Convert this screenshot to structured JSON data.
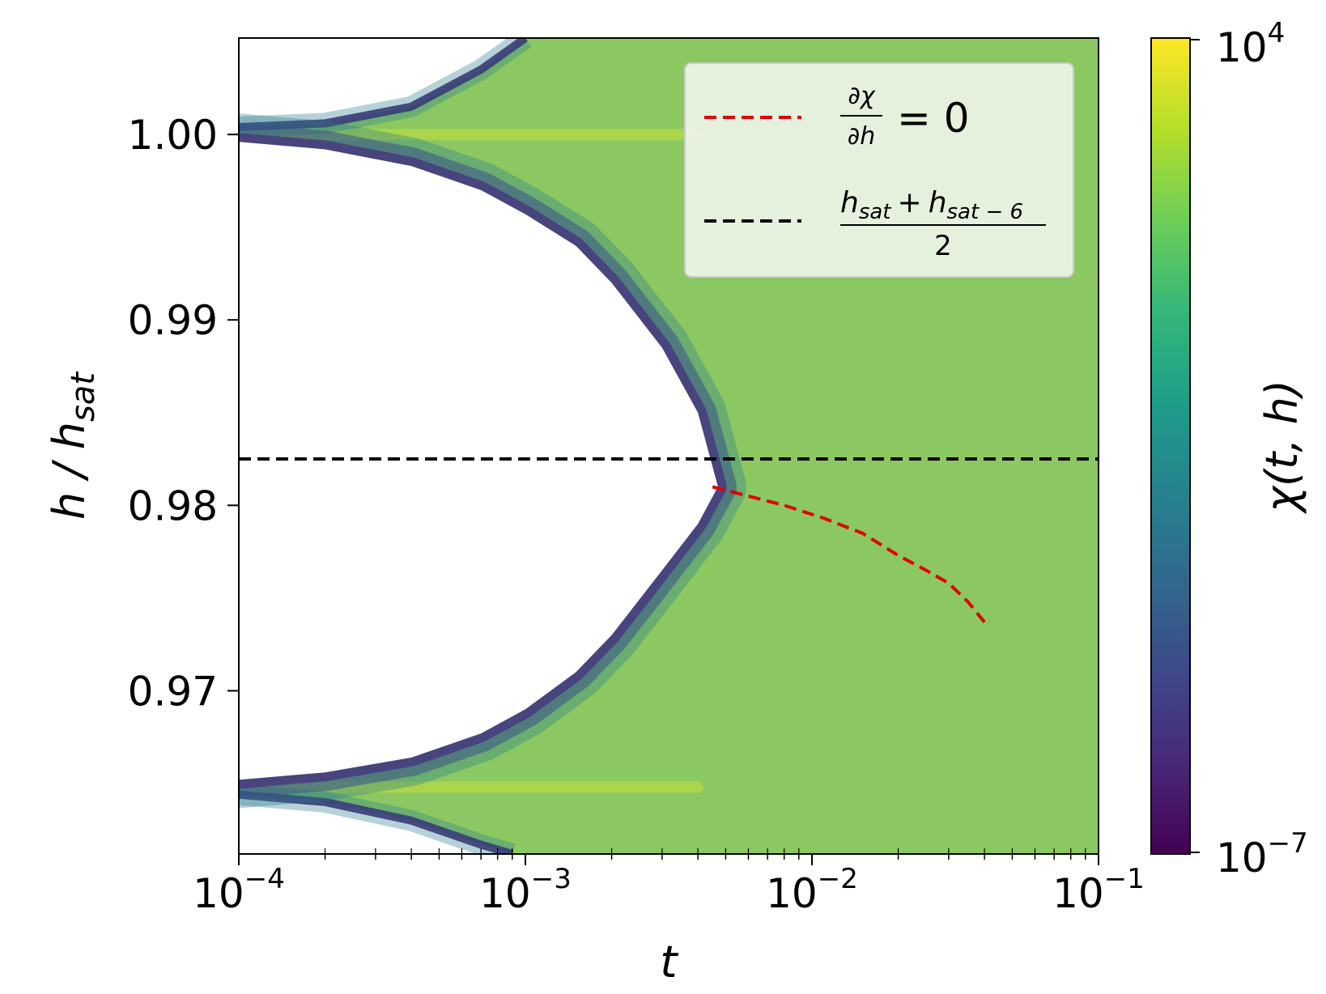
{
  "chart_data": {
    "type": "heatmap",
    "subtype": "filled-contour",
    "xlabel": "t",
    "xscale": "log",
    "xlim": [
      0.0001,
      0.1
    ],
    "xticks": [
      {
        "value": 0.0001,
        "base": "10",
        "exp": "−4"
      },
      {
        "value": 0.001,
        "base": "10",
        "exp": "−3"
      },
      {
        "value": 0.01,
        "base": "10",
        "exp": "−2"
      },
      {
        "value": 0.1,
        "base": "10",
        "exp": "−1"
      }
    ],
    "ylabel_main": "h / h",
    "ylabel_sub": "sat",
    "ylim": [
      0.9612,
      1.0052
    ],
    "yticks": [
      {
        "value": 1.0,
        "label": "1.00"
      },
      {
        "value": 0.99,
        "label": "0.99"
      },
      {
        "value": 0.98,
        "label": "0.98"
      },
      {
        "value": 0.97,
        "label": "0.97"
      }
    ],
    "colorbar": {
      "label": "χ(t, h)",
      "scale": "log",
      "min_label": {
        "base": "10",
        "exp": "−7"
      },
      "max_label": {
        "base": "10",
        "exp": "4"
      },
      "colormap": "viridis",
      "colors": [
        "#440154",
        "#482878",
        "#3e4989",
        "#31688e",
        "#26828e",
        "#1f9e89",
        "#35b779",
        "#6ece58",
        "#b5de2b",
        "#fde725"
      ]
    },
    "region_colors": {
      "background": "#8cc862",
      "contour_band_inner": "#a5d25a",
      "peak": "#c2e03c",
      "edge": "#3d1a6a"
    },
    "peaks": [
      {
        "name": "upper-resonance",
        "h": 1.0,
        "t_start": 0.0001,
        "outer_edge": [
          [
            0.0001,
            1.0004
          ],
          [
            0.0002,
            1.0006
          ],
          [
            0.0004,
            1.0015
          ],
          [
            0.0007,
            1.0035
          ],
          [
            0.001,
            1.0052
          ]
        ],
        "inner_edge": [
          [
            0.0001,
            0.9996
          ],
          [
            0.0002,
            0.9992
          ],
          [
            0.0004,
            0.9983
          ],
          [
            0.0007,
            0.997
          ],
          [
            0.001,
            0.9957
          ],
          [
            0.0015,
            0.994
          ],
          [
            0.002,
            0.992
          ],
          [
            0.003,
            0.9885
          ],
          [
            0.004,
            0.985
          ],
          [
            0.0047,
            0.981
          ]
        ]
      },
      {
        "name": "lower-resonance",
        "h": 0.9648,
        "t_start": 0.0001,
        "outer_edge": [
          [
            0.0001,
            0.9644
          ],
          [
            0.0002,
            0.964
          ],
          [
            0.0004,
            0.963
          ],
          [
            0.0007,
            0.9617
          ],
          [
            0.0009,
            0.9612
          ]
        ],
        "inner_edge": [
          [
            0.0001,
            0.9652
          ],
          [
            0.0002,
            0.9656
          ],
          [
            0.0004,
            0.9664
          ],
          [
            0.0007,
            0.9677
          ],
          [
            0.001,
            0.969
          ],
          [
            0.0015,
            0.971
          ],
          [
            0.002,
            0.973
          ],
          [
            0.003,
            0.9765
          ],
          [
            0.004,
            0.979
          ],
          [
            0.0047,
            0.981
          ]
        ]
      }
    ],
    "series": [
      {
        "name": "dchi_dh_zero",
        "legend_label": "∂χ/∂h = 0",
        "style": "dashed",
        "color": "#e00000",
        "x": [
          0.0045,
          0.006,
          0.008,
          0.011,
          0.015,
          0.02,
          0.025,
          0.03,
          0.035,
          0.04
        ],
        "y": [
          0.981,
          0.9805,
          0.98,
          0.9793,
          0.9785,
          0.9773,
          0.9765,
          0.9758,
          0.9748,
          0.9737
        ]
      },
      {
        "name": "hsat_average",
        "legend_label": "(h_sat + h_sat−6) / 2",
        "style": "dashed",
        "color": "#000000",
        "x": [
          0.0001,
          0.1
        ],
        "y": [
          0.9825,
          0.9825
        ]
      }
    ],
    "legend": {
      "placement": "top-right",
      "entry1": {
        "num": "∂χ",
        "den": "∂h",
        "rhs": "= 0"
      },
      "entry2": {
        "num_a": "h",
        "num_a_sub": "sat",
        "plus": "+",
        "num_b": "h",
        "num_b_sub": "sat − 6",
        "den": "2"
      }
    }
  }
}
